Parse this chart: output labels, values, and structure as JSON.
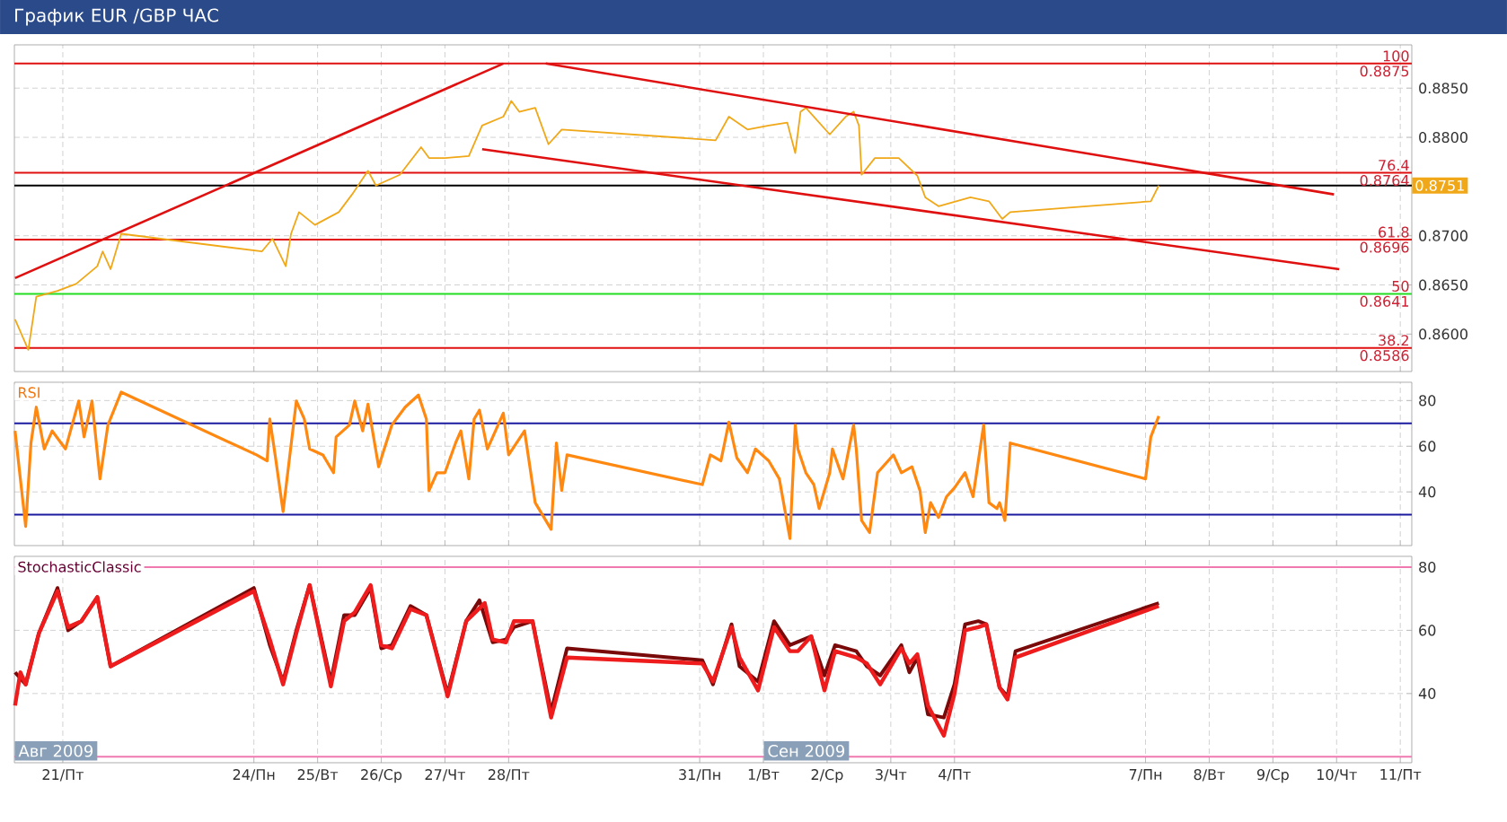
{
  "chart_data": [
    {
      "type": "line",
      "title": "График EUR /GBP  ЧАС",
      "xlim": [
        "2009-08-20T05:45",
        "2009-09-11T04:20"
      ],
      "ylim": [
        0.8562,
        0.8894
      ],
      "grid": true,
      "tick_labels": "y",
      "xticks": [
        {
          "value": "2009-08-21",
          "label": null
        },
        {
          "value": "2009-08-24",
          "label": null
        },
        {
          "value": "2009-08-25",
          "label": null
        },
        {
          "value": "2009-08-26",
          "label": null
        },
        {
          "value": "2009-08-27",
          "label": null
        },
        {
          "value": "2009-08-28",
          "label": null
        },
        {
          "value": "2009-08-31",
          "label": null
        },
        {
          "value": "2009-09-01",
          "label": null
        },
        {
          "value": "2009-09-02",
          "label": null
        },
        {
          "value": "2009-09-03",
          "label": null
        },
        {
          "value": "2009-09-04",
          "label": null
        },
        {
          "value": "2009-09-07",
          "label": null
        },
        {
          "value": "2009-09-08",
          "label": null
        },
        {
          "value": "2009-09-09",
          "label": null
        },
        {
          "value": "2009-09-10",
          "label": null
        },
        {
          "value": "2009-09-11",
          "label": null
        }
      ],
      "yticks": [
        {
          "value": 0.86,
          "label": "0.8600"
        },
        {
          "value": 0.865,
          "label": "0.8650"
        },
        {
          "value": 0.87,
          "label": "0.8700"
        },
        {
          "value": 0.88,
          "label": "0.8800"
        },
        {
          "value": 0.885,
          "label": "0.8850"
        }
      ],
      "series": [
        {
          "color": "#f0a818",
          "x": [
            "2009-08-20T06:00",
            "2009-08-20T11:00",
            "2009-08-20T14:00",
            "2009-08-20T22:00",
            "2009-08-21T05:00",
            "2009-08-21T13:00",
            "2009-08-21T15:00",
            "2009-08-21T18:00",
            "2009-08-21T22:00",
            "2009-08-24T03:00",
            "2009-08-24T07:00",
            "2009-08-24T12:00",
            "2009-08-24T14:00",
            "2009-08-24T17:00",
            "2009-08-24T23:00",
            "2009-08-25T08:00",
            "2009-08-25T13:00",
            "2009-08-25T19:00",
            "2009-08-25T22:00",
            "2009-08-26T07:00",
            "2009-08-26T15:00",
            "2009-08-26T18:00",
            "2009-08-27T00:00",
            "2009-08-27T09:00",
            "2009-08-27T14:00",
            "2009-08-27T22:00",
            "2009-08-28T01:00",
            "2009-08-28T04:00",
            "2009-08-28T10:00",
            "2009-08-28T15:00",
            "2009-08-28T20:00",
            "2009-08-31T06:00",
            "2009-08-31T11:00",
            "2009-08-31T18:00",
            "2009-09-01T02:00",
            "2009-09-01T09:00",
            "2009-09-01T12:00",
            "2009-09-01T14:00",
            "2009-09-01T16:00",
            "2009-09-02T01:00",
            "2009-09-02T07:00",
            "2009-09-02T10:00",
            "2009-09-02T12:00",
            "2009-09-02T13:00",
            "2009-09-02T18:00",
            "2009-09-03T03:00",
            "2009-09-03T10:00",
            "2009-09-03T13:00",
            "2009-09-03T18:00",
            "2009-09-04T06:00",
            "2009-09-04T13:00",
            "2009-09-04T18:00",
            "2009-09-04T21:00",
            "2009-09-07T02:00",
            "2009-09-07T05:00"
          ],
          "values": [
            0.8615,
            0.8584,
            0.8638,
            0.8644,
            0.8651,
            0.8669,
            0.8684,
            0.8666,
            0.8702,
            0.8684,
            0.8697,
            0.8669,
            0.8702,
            0.8724,
            0.8711,
            0.8724,
            0.8742,
            0.8766,
            0.8751,
            0.8762,
            0.879,
            0.8779,
            0.8779,
            0.8781,
            0.8812,
            0.8821,
            0.8837,
            0.8826,
            0.883,
            0.8793,
            0.8808,
            0.8797,
            0.8821,
            0.8808,
            0.8812,
            0.8815,
            0.8784,
            0.8826,
            0.883,
            0.8803,
            0.8821,
            0.8826,
            0.8812,
            0.8762,
            0.8779,
            0.8779,
            0.8761,
            0.8739,
            0.873,
            0.8739,
            0.8735,
            0.8717,
            0.8724,
            0.8735,
            0.8751
          ]
        },
        {
          "color": "#e01010",
          "x": [
            "2009-08-20T06:00",
            "2009-08-27T22:00"
          ],
          "values": [
            0.8657,
            0.8875
          ]
        },
        {
          "color": "#e01010",
          "x": [
            "2009-08-28T14:00",
            "2009-09-09T23:00"
          ],
          "values": [
            0.8875,
            0.8742
          ]
        },
        {
          "color": "#e01010",
          "x": [
            "2009-08-27T14:00",
            "2009-09-10T01:00"
          ],
          "values": [
            0.8788,
            0.8666
          ]
        }
      ],
      "ref_lines": [
        {
          "axis": "y",
          "value": 0.8875,
          "color": "#e01010"
        },
        {
          "axis": "y",
          "value": 0.8764,
          "color": "#e01010"
        },
        {
          "axis": "y",
          "value": 0.8696,
          "color": "#e01010"
        },
        {
          "axis": "y",
          "value": 0.8641,
          "color": "#22dd22"
        },
        {
          "axis": "y",
          "value": 0.8586,
          "color": "#e01010"
        },
        {
          "axis": "y",
          "value": 0.8751,
          "color": "#000000",
          "label": "0.8751"
        }
      ],
      "annotations": [
        "100",
        "0.8875",
        "76.4",
        "0.8764",
        "61.8",
        "0.8696",
        "50",
        "0.8641",
        "38.2",
        "0.8586"
      ]
    },
    {
      "type": "line",
      "title": "RSI",
      "xlim": [
        "2009-08-20T05:45",
        "2009-09-11T04:20"
      ],
      "ylim": [
        16.5,
        88
      ],
      "grid": true,
      "tick_labels": "y",
      "xticks": [
        {
          "value": "2009-08-21",
          "label": null
        },
        {
          "value": "2009-08-24",
          "label": null
        },
        {
          "value": "2009-08-25",
          "label": null
        },
        {
          "value": "2009-08-26",
          "label": null
        },
        {
          "value": "2009-08-27",
          "label": null
        },
        {
          "value": "2009-08-28",
          "label": null
        },
        {
          "value": "2009-08-31",
          "label": null
        },
        {
          "value": "2009-09-01",
          "label": null
        },
        {
          "value": "2009-09-02",
          "label": null
        },
        {
          "value": "2009-09-03",
          "label": null
        },
        {
          "value": "2009-09-04",
          "label": null
        },
        {
          "value": "2009-09-07",
          "label": null
        },
        {
          "value": "2009-09-08",
          "label": null
        },
        {
          "value": "2009-09-09",
          "label": null
        },
        {
          "value": "2009-09-10",
          "label": null
        },
        {
          "value": "2009-09-11",
          "label": null
        }
      ],
      "yticks": [
        40,
        60,
        80
      ],
      "series": [
        {
          "color": "#ff8811",
          "x": [
            "2009-08-20T06:00",
            "2009-08-20T08:00",
            "2009-08-20T10:00",
            "2009-08-20T12:00",
            "2009-08-20T14:00",
            "2009-08-20T17:00",
            "2009-08-20T20:00",
            "2009-08-21T01:00",
            "2009-08-21T06:00",
            "2009-08-21T08:00",
            "2009-08-21T11:00",
            "2009-08-21T14:00",
            "2009-08-21T17:00",
            "2009-08-21T22:00",
            "2009-08-24T01:00",
            "2009-08-24T05:00",
            "2009-08-24T06:00",
            "2009-08-24T08:00",
            "2009-08-24T11:00",
            "2009-08-24T16:00",
            "2009-08-24T19:00",
            "2009-08-24T21:00",
            "2009-08-25T02:00",
            "2009-08-25T06:00",
            "2009-08-25T07:00",
            "2009-08-25T12:00",
            "2009-08-25T14:00",
            "2009-08-25T17:00",
            "2009-08-25T19:00",
            "2009-08-25T23:00",
            "2009-08-26T04:00",
            "2009-08-26T09:00",
            "2009-08-26T14:00",
            "2009-08-26T17:00",
            "2009-08-26T18:00",
            "2009-08-26T21:00",
            "2009-08-27T00:00",
            "2009-08-27T04:00",
            "2009-08-27T06:00",
            "2009-08-27T09:00",
            "2009-08-27T11:00",
            "2009-08-27T13:00",
            "2009-08-27T16:00",
            "2009-08-27T22:00",
            "2009-08-28T00:00",
            "2009-08-28T06:00",
            "2009-08-28T10:00",
            "2009-08-28T16:00",
            "2009-08-28T18:00",
            "2009-08-28T20:00",
            "2009-08-28T22:00",
            "2009-08-31T01:00",
            "2009-08-31T04:00",
            "2009-08-31T08:00",
            "2009-08-31T11:00",
            "2009-08-31T14:00",
            "2009-08-31T18:00",
            "2009-08-31T21:00",
            "2009-09-01T02:00",
            "2009-09-01T06:00",
            "2009-09-01T10:00",
            "2009-09-01T12:00",
            "2009-09-01T13:00",
            "2009-09-01T16:00",
            "2009-09-01T19:00",
            "2009-09-01T21:00",
            "2009-09-02T01:00",
            "2009-09-02T02:00",
            "2009-09-02T06:00",
            "2009-09-02T10:00",
            "2009-09-02T11:00",
            "2009-09-02T13:00",
            "2009-09-02T16:00",
            "2009-09-02T19:00",
            "2009-09-03T01:00",
            "2009-09-03T04:00",
            "2009-09-03T08:00",
            "2009-09-03T11:00",
            "2009-09-03T13:00",
            "2009-09-03T15:00",
            "2009-09-03T18:00",
            "2009-09-03T21:00",
            "2009-09-04T00:00",
            "2009-09-04T04:00",
            "2009-09-04T07:00",
            "2009-09-04T11:00",
            "2009-09-04T13:00",
            "2009-09-04T16:00",
            "2009-09-04T17:00",
            "2009-09-04T19:00",
            "2009-09-04T21:00",
            "2009-09-07T00:00",
            "2009-09-07T02:00",
            "2009-09-07T05:00"
          ],
          "values": [
            66.7,
            45.7,
            24.9,
            61.4,
            77.1,
            58.8,
            66.7,
            58.8,
            79.8,
            64.1,
            79.8,
            45.7,
            69.3,
            83.7,
            56.2,
            53.6,
            71.9,
            56.2,
            31.4,
            79.8,
            71.9,
            58.8,
            56.2,
            48.4,
            64.1,
            69.3,
            79.8,
            66.7,
            78.4,
            51.0,
            69.3,
            77.1,
            82.4,
            71.9,
            40.6,
            48.4,
            48.4,
            61.4,
            66.7,
            45.7,
            71.9,
            75.8,
            58.8,
            74.5,
            56.2,
            66.7,
            35.3,
            23.6,
            61.4,
            40.6,
            56.2,
            43.2,
            56.2,
            53.6,
            70.6,
            54.9,
            48.4,
            58.8,
            53.6,
            45.7,
            19.6,
            69.3,
            58.8,
            48.4,
            43.2,
            32.7,
            48.4,
            58.8,
            45.7,
            69.3,
            58.8,
            27.5,
            22.2,
            48.4,
            56.2,
            48.4,
            51.0,
            40.6,
            22.2,
            35.3,
            28.8,
            37.9,
            41.8,
            48.4,
            37.9,
            69.3,
            35.3,
            32.7,
            35.3,
            27.5,
            61.4,
            45.7,
            64.1,
            73.2
          ]
        }
      ],
      "ref_lines": [
        {
          "axis": "y",
          "value": 70,
          "color": "#1a1aa0"
        },
        {
          "axis": "y",
          "value": 30,
          "color": "#1a1aa0"
        }
      ]
    },
    {
      "type": "line",
      "title": "StochasticClassic",
      "xlim": [
        "2009-08-20T05:45",
        "2009-09-11T04:20"
      ],
      "ylim": [
        18.1,
        83.4
      ],
      "grid": true,
      "xticks": [
        {
          "value": "2009-08-21",
          "label": "21/Пт"
        },
        {
          "value": "2009-08-24",
          "label": "24/Пн"
        },
        {
          "value": "2009-08-25",
          "label": "25/Вт"
        },
        {
          "value": "2009-08-26",
          "label": "26/Ср"
        },
        {
          "value": "2009-08-27",
          "label": "27/Чт"
        },
        {
          "value": "2009-08-28",
          "label": "28/Пт"
        },
        {
          "value": "2009-08-31",
          "label": "31/Пн"
        },
        {
          "value": "2009-09-01",
          "label": "1/Вт"
        },
        {
          "value": "2009-09-02",
          "label": "2/Ср"
        },
        {
          "value": "2009-09-03",
          "label": "3/Чт"
        },
        {
          "value": "2009-09-04",
          "label": "4/Пт"
        },
        {
          "value": "2009-09-07",
          "label": "7/Пн"
        },
        {
          "value": "2009-09-08",
          "label": "8/Вт"
        },
        {
          "value": "2009-09-09",
          "label": "9/Ср"
        },
        {
          "value": "2009-09-10",
          "label": "10/Чт"
        },
        {
          "value": "2009-09-11",
          "label": "11/Пт"
        }
      ],
      "yticks": [
        40,
        60,
        80
      ],
      "series": [
        {
          "color": "#7a0a0a",
          "x": [
            "2009-08-20T06:00",
            "2009-08-20T10:00",
            "2009-08-20T15:00",
            "2009-08-20T22:00",
            "2009-08-21T02:00",
            "2009-08-21T07:00",
            "2009-08-21T13:00",
            "2009-08-21T18:00",
            "2009-08-24T00:00",
            "2009-08-24T06:00",
            "2009-08-24T11:00",
            "2009-08-24T16:00",
            "2009-08-24T21:00",
            "2009-08-25T05:00",
            "2009-08-25T10:00",
            "2009-08-25T14:00",
            "2009-08-25T20:00",
            "2009-08-26T00:00",
            "2009-08-26T04:00",
            "2009-08-26T11:00",
            "2009-08-26T17:00",
            "2009-08-27T01:00",
            "2009-08-27T08:00",
            "2009-08-27T13:00",
            "2009-08-27T18:00",
            "2009-08-27T23:00",
            "2009-08-28T02:00",
            "2009-08-28T09:00",
            "2009-08-28T16:00",
            "2009-08-28T22:00",
            "2009-08-31T01:00",
            "2009-08-31T05:00",
            "2009-08-31T12:00",
            "2009-08-31T15:00",
            "2009-08-31T22:00",
            "2009-09-01T04:00",
            "2009-09-01T10:00",
            "2009-09-01T18:00",
            "2009-09-01T23:00",
            "2009-09-02T03:00",
            "2009-09-02T11:00",
            "2009-09-02T15:00",
            "2009-09-02T20:00",
            "2009-09-03T04:00",
            "2009-09-03T07:00",
            "2009-09-03T10:00",
            "2009-09-03T14:00",
            "2009-09-03T20:00",
            "2009-09-04T00:00",
            "2009-09-04T04:00",
            "2009-09-04T09:00",
            "2009-09-04T12:00",
            "2009-09-04T17:00",
            "2009-09-04T20:00",
            "2009-09-04T23:00",
            "2009-09-07T05:00"
          ],
          "values": [
            46.7,
            42.9,
            59.1,
            73.4,
            60.0,
            62.9,
            70.5,
            48.6,
            73.4,
            55.3,
            43.8,
            60.0,
            74.3,
            43.8,
            64.8,
            64.8,
            73.4,
            54.3,
            55.3,
            67.7,
            64.8,
            40.0,
            62.9,
            69.5,
            56.2,
            57.1,
            61.0,
            62.9,
            34.3,
            54.3,
            50.5,
            42.9,
            61.9,
            48.6,
            43.8,
            62.9,
            55.3,
            58.1,
            45.7,
            55.3,
            53.4,
            48.6,
            45.7,
            55.3,
            46.7,
            51.4,
            33.4,
            32.4,
            42.9,
            61.9,
            62.9,
            61.9,
            41.9,
            39.1,
            53.4,
            68.6
          ]
        },
        {
          "color": "#ee1c1c",
          "x": [
            "2009-08-20T06:00",
            "2009-08-20T08:00",
            "2009-08-20T10:00",
            "2009-08-20T15:00",
            "2009-08-20T22:00",
            "2009-08-21T02:00",
            "2009-08-21T07:00",
            "2009-08-21T13:00",
            "2009-08-21T18:00",
            "2009-08-24T00:00",
            "2009-08-24T06:00",
            "2009-08-24T11:00",
            "2009-08-24T16:00",
            "2009-08-24T21:00",
            "2009-08-25T05:00",
            "2009-08-25T10:00",
            "2009-08-25T14:00",
            "2009-08-25T20:00",
            "2009-08-26T00:00",
            "2009-08-26T04:00",
            "2009-08-26T11:00",
            "2009-08-26T17:00",
            "2009-08-27T01:00",
            "2009-08-27T08:00",
            "2009-08-27T15:00",
            "2009-08-27T18:00",
            "2009-08-27T23:00",
            "2009-08-28T02:00",
            "2009-08-28T09:00",
            "2009-08-28T16:00",
            "2009-08-28T22:00",
            "2009-08-31T01:00",
            "2009-08-31T05:00",
            "2009-08-31T12:00",
            "2009-08-31T15:00",
            "2009-08-31T22:00",
            "2009-09-01T04:00",
            "2009-09-01T10:00",
            "2009-09-01T13:00",
            "2009-09-01T18:00",
            "2009-09-01T23:00",
            "2009-09-02T03:00",
            "2009-09-02T11:00",
            "2009-09-02T15:00",
            "2009-09-02T20:00",
            "2009-09-03T04:00",
            "2009-09-03T07:00",
            "2009-09-03T10:00",
            "2009-09-03T14:00",
            "2009-09-03T20:00",
            "2009-09-04T00:00",
            "2009-09-04T04:00",
            "2009-09-04T09:00",
            "2009-09-04T12:00",
            "2009-09-04T17:00",
            "2009-09-04T20:00",
            "2009-09-04T23:00",
            "2009-09-07T05:00"
          ],
          "values": [
            36.2,
            46.7,
            42.9,
            59.1,
            72.4,
            61.0,
            62.9,
            70.5,
            48.6,
            72.4,
            57.1,
            42.9,
            59.1,
            74.3,
            42.3,
            62.9,
            65.7,
            74.3,
            55.3,
            54.3,
            66.7,
            64.8,
            39.1,
            62.9,
            68.6,
            57.1,
            56.2,
            62.9,
            62.9,
            32.4,
            51.4,
            49.5,
            43.8,
            61.0,
            51.4,
            41.0,
            61.0,
            53.4,
            53.4,
            58.1,
            41.0,
            53.4,
            51.4,
            49.5,
            42.9,
            54.3,
            49.5,
            52.4,
            36.2,
            26.7,
            40.0,
            60.0,
            61.0,
            61.9,
            41.9,
            38.1,
            51.4,
            67.7
          ]
        }
      ],
      "ref_lines": [
        {
          "axis": "y",
          "value": 80,
          "color": "#f07ab0"
        },
        {
          "axis": "y",
          "value": 20,
          "color": "#f07ab0"
        }
      ],
      "annotations": [
        "Авг 2009",
        "Сен 2009"
      ]
    }
  ]
}
